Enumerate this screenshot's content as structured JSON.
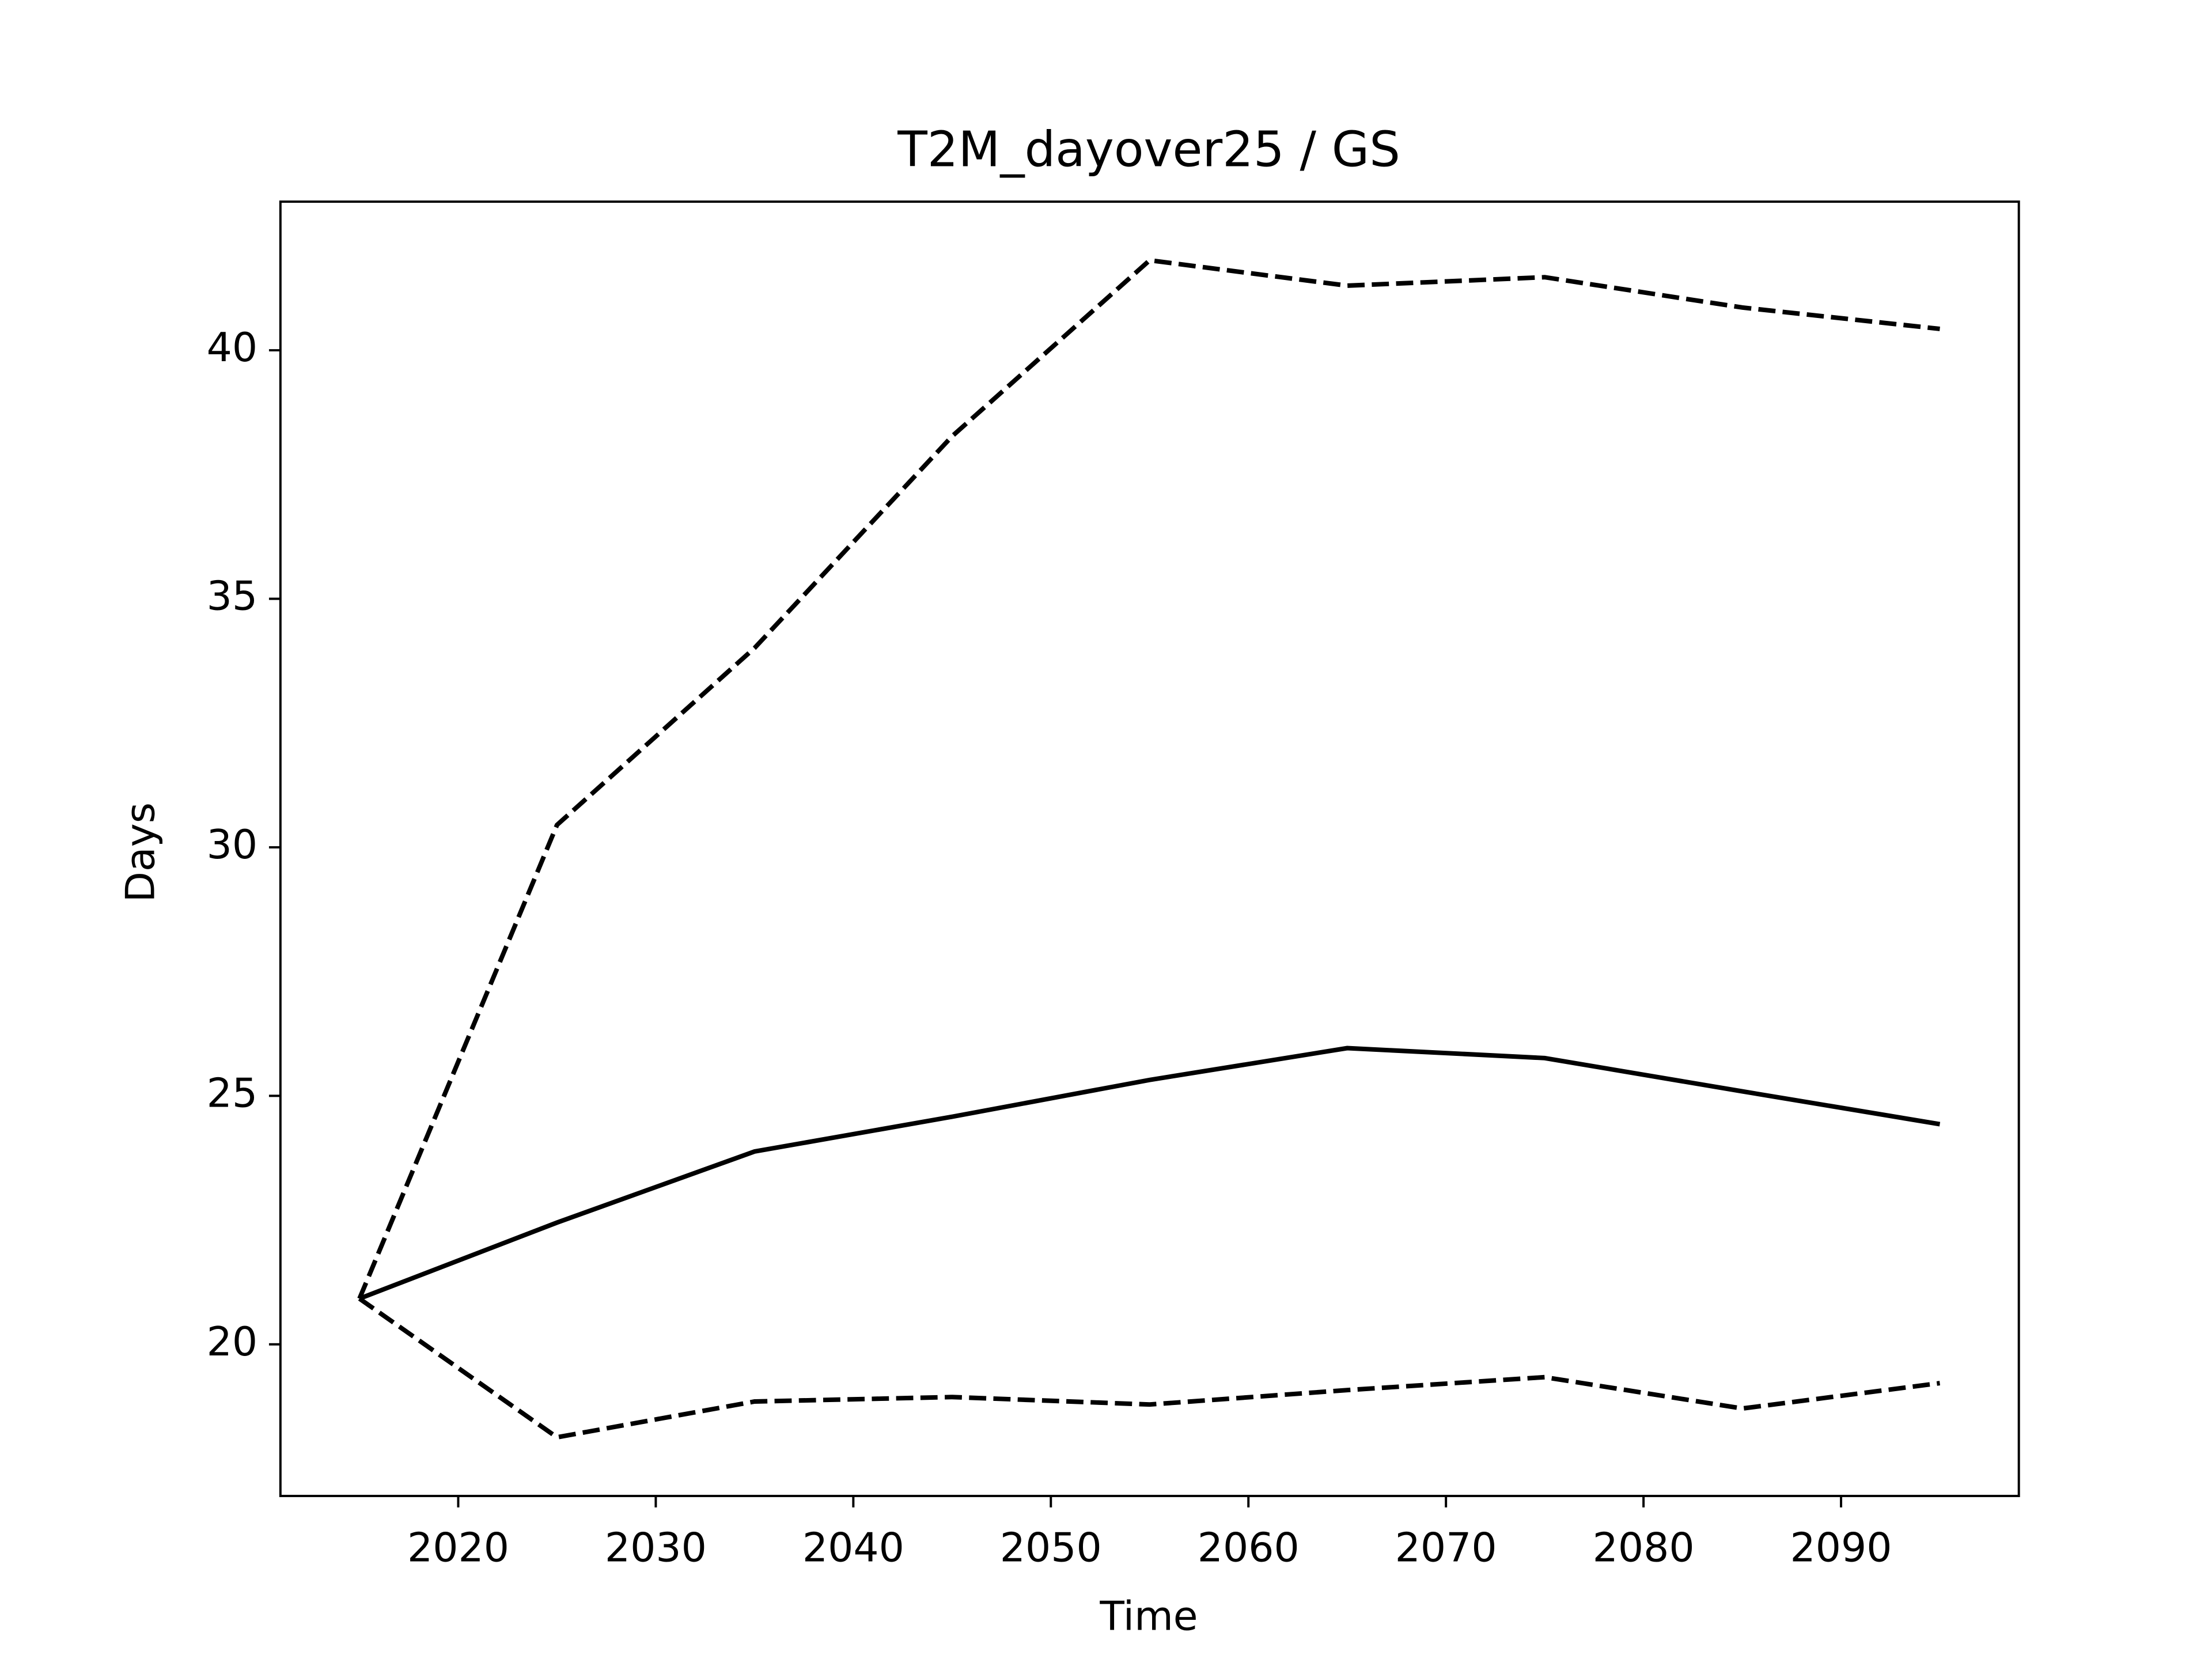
{
  "chart_data": {
    "type": "line",
    "title": "T2M_dayover25 / GS",
    "xlabel": "Time",
    "ylabel": "Days",
    "x": [
      2015,
      2025,
      2035,
      2045,
      2055,
      2065,
      2075,
      2085,
      2095
    ],
    "series": [
      {
        "color": "#000000",
        "linestyle": "solid",
        "values": [
          20.92,
          22.45,
          23.88,
          24.58,
          25.32,
          25.96,
          25.76,
          25.09,
          24.43
        ]
      },
      {
        "color": "#000000",
        "linestyle": "dashed",
        "values": [
          20.92,
          30.45,
          34.01,
          38.27,
          41.81,
          41.3,
          41.47,
          40.86,
          40.43
        ]
      },
      {
        "color": "#000000",
        "linestyle": "dashed",
        "values": [
          20.92,
          18.13,
          18.85,
          18.94,
          18.79,
          19.08,
          19.34,
          18.71,
          19.22
        ]
      }
    ],
    "xlim": [
      2011,
      2099
    ],
    "xticks": [
      2020,
      2030,
      2040,
      2050,
      2060,
      2070,
      2080,
      2090
    ],
    "ylim": [
      16.95,
      42.99
    ],
    "yticks": [
      20,
      25,
      30,
      35,
      40
    ],
    "grid": false
  }
}
